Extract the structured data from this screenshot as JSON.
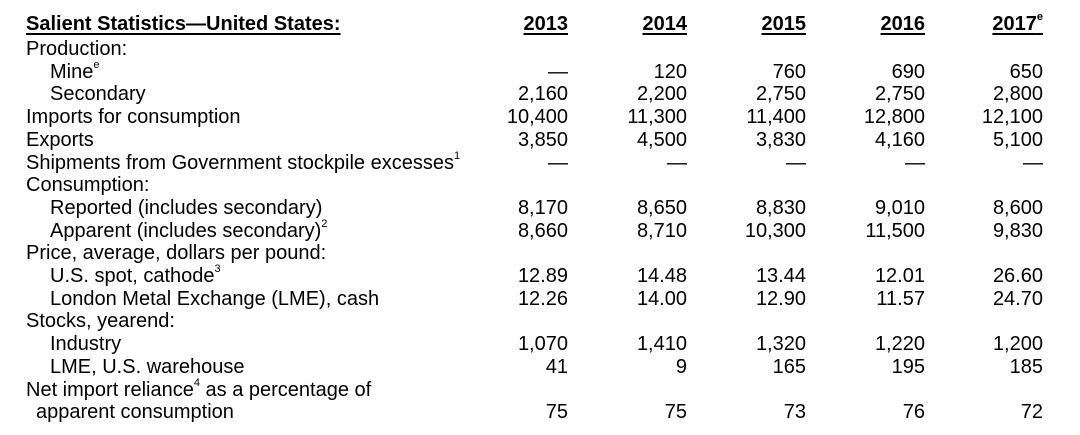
{
  "title": "Salient Statistics—United States:",
  "years": [
    "2013",
    "2014",
    "2015",
    "2016",
    "2017"
  ],
  "last_year_sup": "e",
  "rows": [
    {
      "label": "Production:",
      "indent": 0,
      "sup": "",
      "values": [
        "",
        "",
        "",
        "",
        ""
      ]
    },
    {
      "label": "Mine",
      "indent": 1,
      "sup": "e",
      "values": [
        "—",
        "120",
        "760",
        "690",
        "650"
      ]
    },
    {
      "label": "Secondary",
      "indent": 1,
      "sup": "",
      "values": [
        "2,160",
        "2,200",
        "2,750",
        "2,750",
        "2,800"
      ]
    },
    {
      "label": "Imports for consumption",
      "indent": 0,
      "sup": "",
      "values": [
        "10,400",
        "11,300",
        "11,400",
        "12,800",
        "12,100"
      ]
    },
    {
      "label": "Exports",
      "indent": 0,
      "sup": "",
      "values": [
        "3,850",
        "4,500",
        "3,830",
        "4,160",
        "5,100"
      ]
    },
    {
      "label": "Shipments from Government stockpile excesses",
      "indent": 0,
      "sup": "1",
      "values": [
        "—",
        "—",
        "—",
        "—",
        "—"
      ]
    },
    {
      "label": "Consumption:",
      "indent": 0,
      "sup": "",
      "values": [
        "",
        "",
        "",
        "",
        ""
      ]
    },
    {
      "label": "Reported (includes secondary)",
      "indent": 1,
      "sup": "",
      "values": [
        "8,170",
        "8,650",
        "8,830",
        "9,010",
        "8,600"
      ]
    },
    {
      "label": "Apparent (includes secondary)",
      "indent": 1,
      "sup": "2",
      "values": [
        "8,660",
        "8,710",
        "10,300",
        "11,500",
        "9,830"
      ]
    },
    {
      "label": "Price, average, dollars per pound:",
      "indent": 0,
      "sup": "",
      "values": [
        "",
        "",
        "",
        "",
        ""
      ]
    },
    {
      "label": "U.S. spot, cathode",
      "indent": 1,
      "sup": "3",
      "values": [
        "12.89",
        "14.48",
        "13.44",
        "12.01",
        "26.60"
      ]
    },
    {
      "label": "London Metal Exchange (LME), cash",
      "indent": 1,
      "sup": "",
      "values": [
        "12.26",
        "14.00",
        "12.90",
        "11.57",
        "24.70"
      ]
    },
    {
      "label": "Stocks, yearend:",
      "indent": 0,
      "sup": "",
      "values": [
        "",
        "",
        "",
        "",
        ""
      ]
    },
    {
      "label": "Industry",
      "indent": 1,
      "sup": "",
      "values": [
        "1,070",
        "1,410",
        "1,320",
        "1,220",
        "1,200"
      ]
    },
    {
      "label": "LME, U.S. warehouse",
      "indent": 1,
      "sup": "",
      "values": [
        "41",
        "9",
        "165",
        "195",
        "185"
      ]
    },
    {
      "label": "Net import reliance",
      "indent": 0,
      "sup": "4",
      "suffix": " as a percentage of",
      "values": [
        "",
        "",
        "",
        "",
        ""
      ]
    },
    {
      "label": "apparent consumption",
      "indent": 2,
      "sup": "",
      "values": [
        "75",
        "75",
        "73",
        "76",
        "72"
      ]
    }
  ]
}
